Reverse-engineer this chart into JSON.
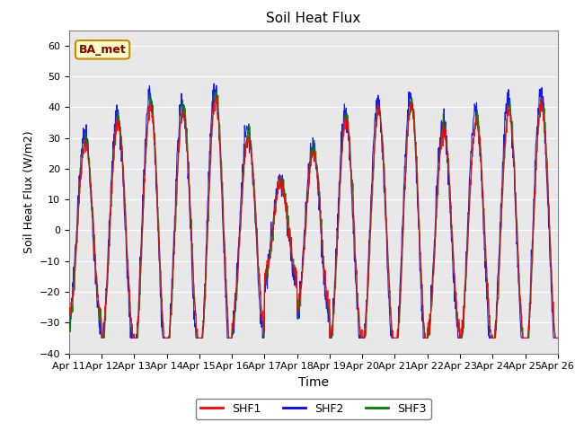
{
  "title": "Soil Heat Flux",
  "xlabel": "Time",
  "ylabel": "Soil Heat Flux (W/m2)",
  "ylim": [
    -40,
    65
  ],
  "yticks": [
    -40,
    -30,
    -20,
    -10,
    0,
    10,
    20,
    30,
    40,
    50,
    60
  ],
  "xticklabels": [
    "Apr 11",
    "Apr 12",
    "Apr 13",
    "Apr 14",
    "Apr 15",
    "Apr 16",
    "Apr 17",
    "Apr 18",
    "Apr 19",
    "Apr 20",
    "Apr 21",
    "Apr 22",
    "Apr 23",
    "Apr 24",
    "Apr 25",
    "Apr 26"
  ],
  "line_colors": [
    "red",
    "blue",
    "green"
  ],
  "line_labels": [
    "SHF1",
    "SHF2",
    "SHF3"
  ],
  "bg_color": "#e8e8e8",
  "annotation_text": "BA_met",
  "annotation_bg": "#ffffcc",
  "annotation_border": "#cc8800"
}
